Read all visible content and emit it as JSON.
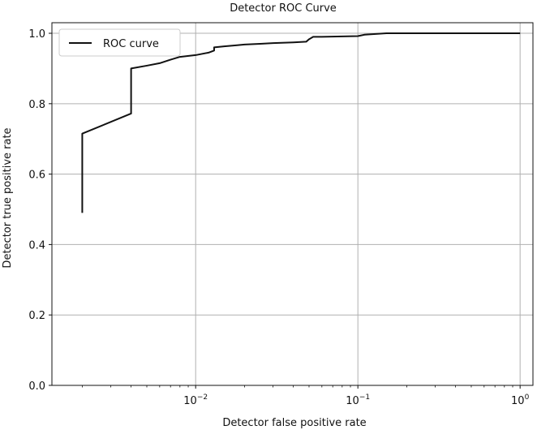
{
  "chart_data": {
    "type": "line",
    "title": "Detector ROC Curve",
    "xlabel": "Detector false positive rate",
    "ylabel": "Detector true positive rate",
    "xscale": "log",
    "xlim": [
      0.0013,
      1.2
    ],
    "ylim": [
      0.0,
      1.03
    ],
    "grid": true,
    "legend_position": "top-left",
    "x_ticks": [
      {
        "value": 0.01,
        "base": "10",
        "exp": "−2"
      },
      {
        "value": 0.1,
        "base": "10",
        "exp": "−1"
      },
      {
        "value": 1,
        "base": "10",
        "exp": "0"
      }
    ],
    "y_ticks": [
      "0.0",
      "0.2",
      "0.4",
      "0.6",
      "0.8",
      "1.0"
    ],
    "series": [
      {
        "name": "ROC curve",
        "color": "#111111",
        "x": [
          0.002,
          0.002,
          0.004,
          0.004,
          0.005,
          0.006,
          0.007,
          0.008,
          0.01,
          0.012,
          0.013,
          0.013,
          0.015,
          0.018,
          0.02,
          0.025,
          0.03,
          0.04,
          0.048,
          0.05,
          0.053,
          0.06,
          0.08,
          0.1,
          0.11,
          0.15,
          0.2,
          0.4,
          1.0
        ],
        "y": [
          0.49,
          0.715,
          0.772,
          0.9,
          0.908,
          0.915,
          0.925,
          0.933,
          0.938,
          0.945,
          0.951,
          0.96,
          0.963,
          0.966,
          0.968,
          0.97,
          0.972,
          0.974,
          0.976,
          0.983,
          0.99,
          0.99,
          0.991,
          0.992,
          0.996,
          1.0,
          1.0,
          1.0,
          1.0
        ]
      }
    ]
  }
}
